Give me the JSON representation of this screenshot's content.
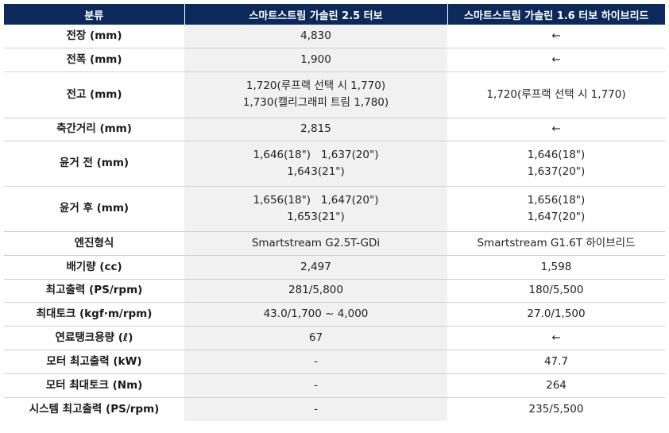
{
  "header": {
    "category": "분류",
    "model_a": "스마트스트림 가솔린 2.5 터보",
    "model_b": "스마트스트림 가솔린 1.6 터보 하이브리드"
  },
  "rows": [
    {
      "label": "전장 (mm)",
      "a": [
        "4,830"
      ],
      "b": [
        "←"
      ]
    },
    {
      "label": "전폭 (mm)",
      "a": [
        "1,900"
      ],
      "b": [
        "←"
      ]
    },
    {
      "label": "전고 (mm)",
      "a": [
        "1,720(루프랙 선택 시 1,770)",
        "1,730(캘리그래피 트림 1,780)"
      ],
      "b": [
        "1,720(루프랙 선택 시 1,770)"
      ]
    },
    {
      "label": "축간거리 (mm)",
      "a": [
        "2,815"
      ],
      "b": [
        "←"
      ]
    },
    {
      "label": "윤거 전 (mm)",
      "a": [
        "1,646(18\")   1,637(20\")",
        "1,643(21\")"
      ],
      "b": [
        "1,646(18\")",
        "1,637(20\")"
      ]
    },
    {
      "label": "윤거 후 (mm)",
      "a": [
        "1,656(18\")   1,647(20\")",
        "1,653(21\")"
      ],
      "b": [
        "1,656(18\")",
        "1,647(20\")"
      ]
    },
    {
      "label": "엔진형식",
      "a": [
        "Smartstream G2.5T-GDi"
      ],
      "b": [
        "Smartstream G1.6T 하이브리드"
      ]
    },
    {
      "label": "배기량 (cc)",
      "a": [
        "2,497"
      ],
      "b": [
        "1,598"
      ]
    },
    {
      "label": "최고출력 (PS/rpm)",
      "a": [
        "281/5,800"
      ],
      "b": [
        "180/5,500"
      ]
    },
    {
      "label": "최대토크 (kgf·m/rpm)",
      "a": [
        "43.0/1,700 ~ 4,000"
      ],
      "b": [
        "27.0/1,500"
      ]
    },
    {
      "label": "연료탱크용량 (ℓ)",
      "a": [
        "67"
      ],
      "b": [
        "←"
      ]
    },
    {
      "label": "모터 최고출력 (kW)",
      "a": [
        "-"
      ],
      "b": [
        "47.7"
      ]
    },
    {
      "label": "모터 최대토크 (Nm)",
      "a": [
        "-"
      ],
      "b": [
        "264"
      ]
    },
    {
      "label": "시스템 최고출력 (PS/rpm)",
      "a": [
        "-"
      ],
      "b": [
        "235/5,500"
      ]
    }
  ]
}
